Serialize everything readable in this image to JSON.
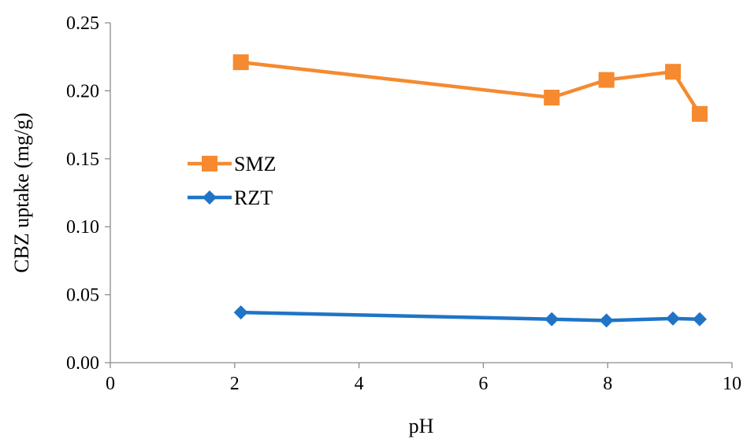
{
  "chart_data": {
    "type": "line",
    "xlabel": "pH",
    "ylabel": "CBZ uptake (mg/g)",
    "xlim": [
      0,
      10
    ],
    "ylim": [
      0,
      0.25
    ],
    "x_ticks": [
      "0",
      "2",
      "4",
      "6",
      "8",
      "10"
    ],
    "y_ticks": [
      "0.00",
      "0.05",
      "0.10",
      "0.15",
      "0.20",
      "0.25"
    ],
    "grid": false,
    "legend_position": "left",
    "series": [
      {
        "name": "SMZ",
        "color": "#F58A30",
        "marker": "square",
        "points": [
          {
            "x": 2.1,
            "y": 0.221
          },
          {
            "x": 7.1,
            "y": 0.195
          },
          {
            "x": 7.98,
            "y": 0.208
          },
          {
            "x": 9.05,
            "y": 0.214
          },
          {
            "x": 9.48,
            "y": 0.183
          }
        ]
      },
      {
        "name": "RZT",
        "color": "#1F74C6",
        "marker": "diamond",
        "points": [
          {
            "x": 2.1,
            "y": 0.037
          },
          {
            "x": 7.1,
            "y": 0.032
          },
          {
            "x": 7.98,
            "y": 0.031
          },
          {
            "x": 9.05,
            "y": 0.0325
          },
          {
            "x": 9.48,
            "y": 0.032
          }
        ]
      }
    ]
  }
}
